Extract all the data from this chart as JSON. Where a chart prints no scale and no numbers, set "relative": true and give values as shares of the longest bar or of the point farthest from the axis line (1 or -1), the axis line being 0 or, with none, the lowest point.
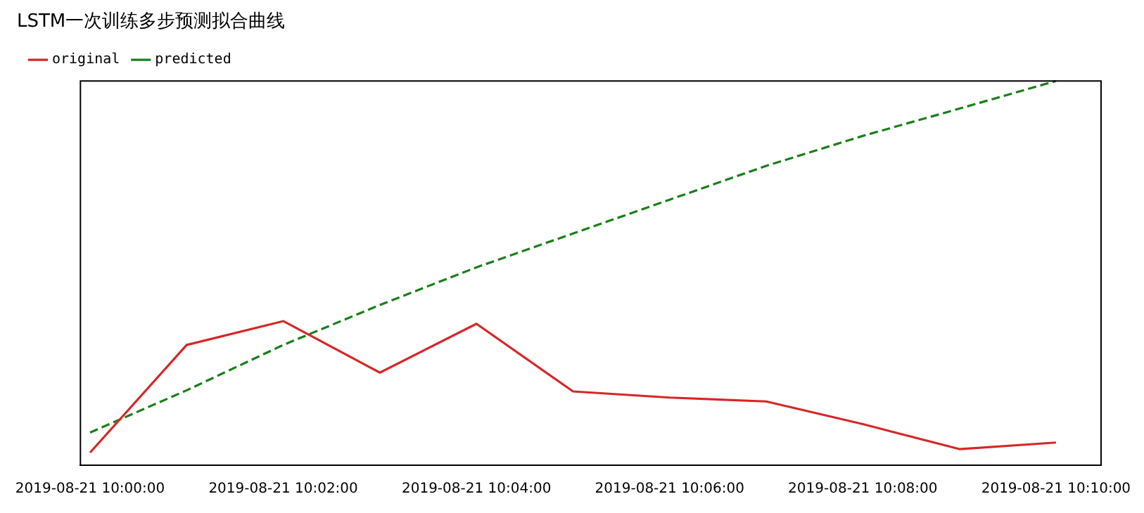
{
  "chart_data": {
    "type": "line",
    "title": "LSTM一次训练多步预测拟合曲线",
    "relative": true,
    "x": [
      "2019-08-21T10:00",
      "2019-08-21T10:01",
      "2019-08-21T10:02",
      "2019-08-21T10:03",
      "2019-08-21T10:04",
      "2019-08-21T10:05",
      "2019-08-21T10:06",
      "2019-08-21T10:07",
      "2019-08-21T10:08",
      "2019-08-21T10:09",
      "2019-08-21T10:10"
    ],
    "xlim": [
      "2019-08-21T09:59:54",
      "2019-08-21T10:10:28"
    ],
    "xticks": [
      {
        "value": "2019-08-21T10:00",
        "label": "2019-08-21 10:00:00"
      },
      {
        "value": "2019-08-21T10:02",
        "label": "2019-08-21 10:02:00"
      },
      {
        "value": "2019-08-21T10:04",
        "label": "2019-08-21 10:04:00"
      },
      {
        "value": "2019-08-21T10:06",
        "label": "2019-08-21 10:06:00"
      },
      {
        "value": "2019-08-21T10:08",
        "label": "2019-08-21 10:08:00"
      },
      {
        "value": "2019-08-21T10:10",
        "label": "2019-08-21 10:10:00"
      }
    ],
    "series": [
      {
        "name": "original",
        "color": "#d62728",
        "line_style": "solid",
        "values": [
          0.033,
          0.313,
          0.375,
          0.241,
          0.368,
          0.192,
          0.176,
          0.166,
          0.107,
          0.042,
          0.059
        ]
      },
      {
        "name": "predicted",
        "color": "#1a7f1a",
        "line_style": "dashed",
        "values": [
          0.085,
          0.195,
          0.313,
          0.417,
          0.515,
          0.603,
          0.691,
          0.779,
          0.857,
          0.928,
          1
        ]
      }
    ],
    "legend": "top left",
    "grid": false,
    "marker": "none"
  }
}
